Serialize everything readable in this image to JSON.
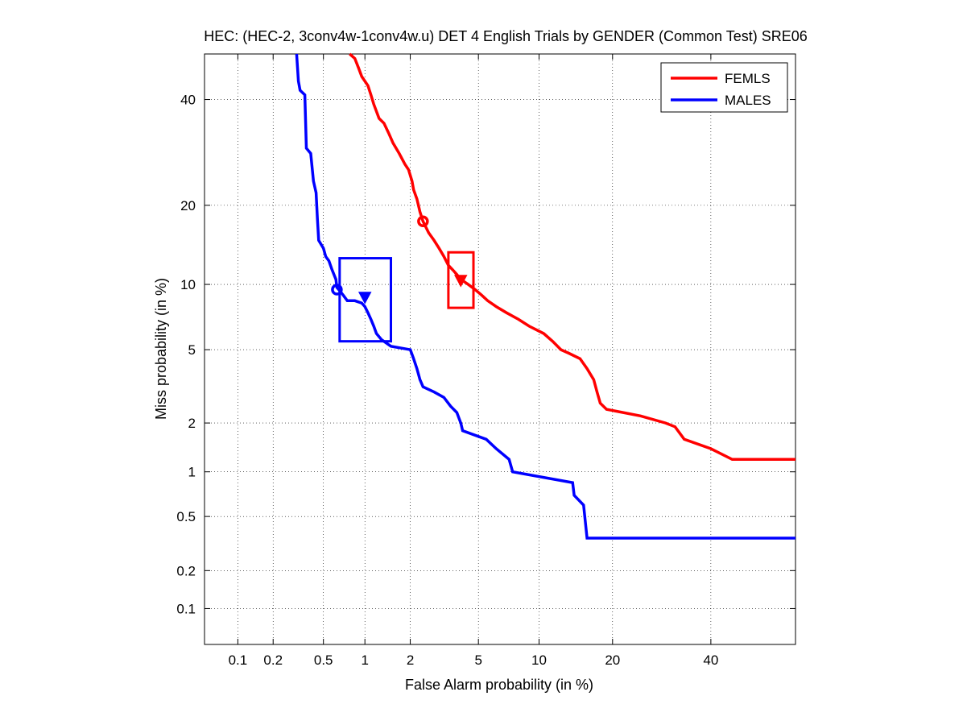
{
  "chart_data": {
    "type": "line",
    "title": "HEC: (HEC-2, 3conv4w-1conv4w.u) DET 4 English Trials by GENDER (Common Test) SRE06",
    "xlabel": "False Alarm probability (in %)",
    "ylabel": "Miss probability (in %)",
    "xscale": "probit",
    "yscale": "probit",
    "xlim": [
      0.05,
      60
    ],
    "ylim": [
      0.05,
      50
    ],
    "xticks": [
      0.1,
      0.2,
      0.5,
      1,
      2,
      5,
      10,
      20,
      40
    ],
    "xtick_labels": [
      "0.1",
      "0.2",
      "0.5",
      "1",
      "2",
      "5",
      "10",
      "20",
      "40"
    ],
    "yticks": [
      0.1,
      0.2,
      0.5,
      1,
      2,
      5,
      10,
      20,
      40
    ],
    "ytick_labels": [
      "0.1",
      "0.2",
      "0.5",
      "1",
      "2",
      "5",
      "10",
      "20",
      "40"
    ],
    "grid": true,
    "legend_position": "top-right",
    "series": [
      {
        "name": "FEMLS",
        "color": "#ff0000",
        "points": [
          [
            0.78,
            50
          ],
          [
            0.85,
            49
          ],
          [
            0.9,
            47
          ],
          [
            0.95,
            45
          ],
          [
            1.0,
            44
          ],
          [
            1.05,
            43
          ],
          [
            1.1,
            41
          ],
          [
            1.15,
            39
          ],
          [
            1.25,
            36
          ],
          [
            1.35,
            35
          ],
          [
            1.45,
            33
          ],
          [
            1.55,
            31
          ],
          [
            1.7,
            29
          ],
          [
            1.85,
            27
          ],
          [
            1.95,
            26
          ],
          [
            2.05,
            24
          ],
          [
            2.1,
            22.5
          ],
          [
            2.2,
            21
          ],
          [
            2.3,
            19
          ],
          [
            2.4,
            17.6
          ],
          [
            2.6,
            16
          ],
          [
            2.8,
            15
          ],
          [
            3.0,
            14
          ],
          [
            3.2,
            13
          ],
          [
            3.4,
            12
          ],
          [
            3.6,
            11.5
          ],
          [
            3.8,
            11
          ],
          [
            4.0,
            10.5
          ],
          [
            4.4,
            10
          ],
          [
            4.8,
            9.5
          ],
          [
            5.2,
            9
          ],
          [
            5.6,
            8.5
          ],
          [
            6.2,
            8
          ],
          [
            7.0,
            7.5
          ],
          [
            8.0,
            7
          ],
          [
            9.0,
            6.5
          ],
          [
            10.5,
            6
          ],
          [
            11.5,
            5.5
          ],
          [
            12.5,
            5
          ],
          [
            13.5,
            4.8
          ],
          [
            15.0,
            4.5
          ],
          [
            16.0,
            4
          ],
          [
            17.0,
            3.5
          ],
          [
            17.5,
            3
          ],
          [
            18.0,
            2.6
          ],
          [
            19.0,
            2.4
          ],
          [
            25.0,
            2.2
          ],
          [
            30.0,
            2.0
          ],
          [
            32.0,
            1.9
          ],
          [
            34.0,
            1.6
          ],
          [
            40.0,
            1.4
          ],
          [
            45.0,
            1.2
          ],
          [
            60.0,
            1.2
          ]
        ],
        "actual_dcf_marker": [
          2.4,
          17.6
        ],
        "min_dcf_marker": [
          4.0,
          10.4
        ],
        "confidence_box": {
          "x": [
            3.4,
            4.7
          ],
          "y": [
            7.9,
            13.5
          ]
        }
      },
      {
        "name": "MALES",
        "color": "#0000ff",
        "points": [
          [
            0.31,
            50
          ],
          [
            0.32,
            44
          ],
          [
            0.33,
            42
          ],
          [
            0.36,
            41
          ],
          [
            0.37,
            30
          ],
          [
            0.4,
            29
          ],
          [
            0.42,
            24
          ],
          [
            0.44,
            22
          ],
          [
            0.45,
            18
          ],
          [
            0.46,
            15
          ],
          [
            0.5,
            14
          ],
          [
            0.52,
            13
          ],
          [
            0.55,
            12.5
          ],
          [
            0.58,
            11.5
          ],
          [
            0.62,
            10.5
          ],
          [
            0.63,
            9.7
          ],
          [
            0.65,
            9.5
          ],
          [
            0.7,
            9
          ],
          [
            0.75,
            8.5
          ],
          [
            0.85,
            8.5
          ],
          [
            0.95,
            8.3
          ],
          [
            1.0,
            8.0
          ],
          [
            1.05,
            7.5
          ],
          [
            1.1,
            7
          ],
          [
            1.15,
            6.5
          ],
          [
            1.2,
            6
          ],
          [
            1.3,
            5.6
          ],
          [
            1.5,
            5.2
          ],
          [
            2.0,
            5.0
          ],
          [
            2.1,
            4.5
          ],
          [
            2.2,
            4.0
          ],
          [
            2.3,
            3.5
          ],
          [
            2.4,
            3.2
          ],
          [
            2.8,
            3.0
          ],
          [
            3.2,
            2.8
          ],
          [
            3.5,
            2.5
          ],
          [
            3.8,
            2.3
          ],
          [
            4.0,
            2.0
          ],
          [
            4.1,
            1.8
          ],
          [
            5.5,
            1.6
          ],
          [
            6.2,
            1.4
          ],
          [
            7.2,
            1.2
          ],
          [
            7.5,
            1.0
          ],
          [
            14.0,
            0.85
          ],
          [
            14.2,
            0.7
          ],
          [
            15.5,
            0.6
          ],
          [
            16.0,
            0.35
          ],
          [
            60.0,
            0.35
          ]
        ],
        "actual_dcf_marker": [
          0.63,
          9.5
        ],
        "min_dcf_marker": [
          1.0,
          8.8
        ],
        "confidence_box": {
          "x": [
            0.66,
            1.5
          ],
          "y": [
            5.5,
            12.8
          ]
        }
      }
    ]
  }
}
